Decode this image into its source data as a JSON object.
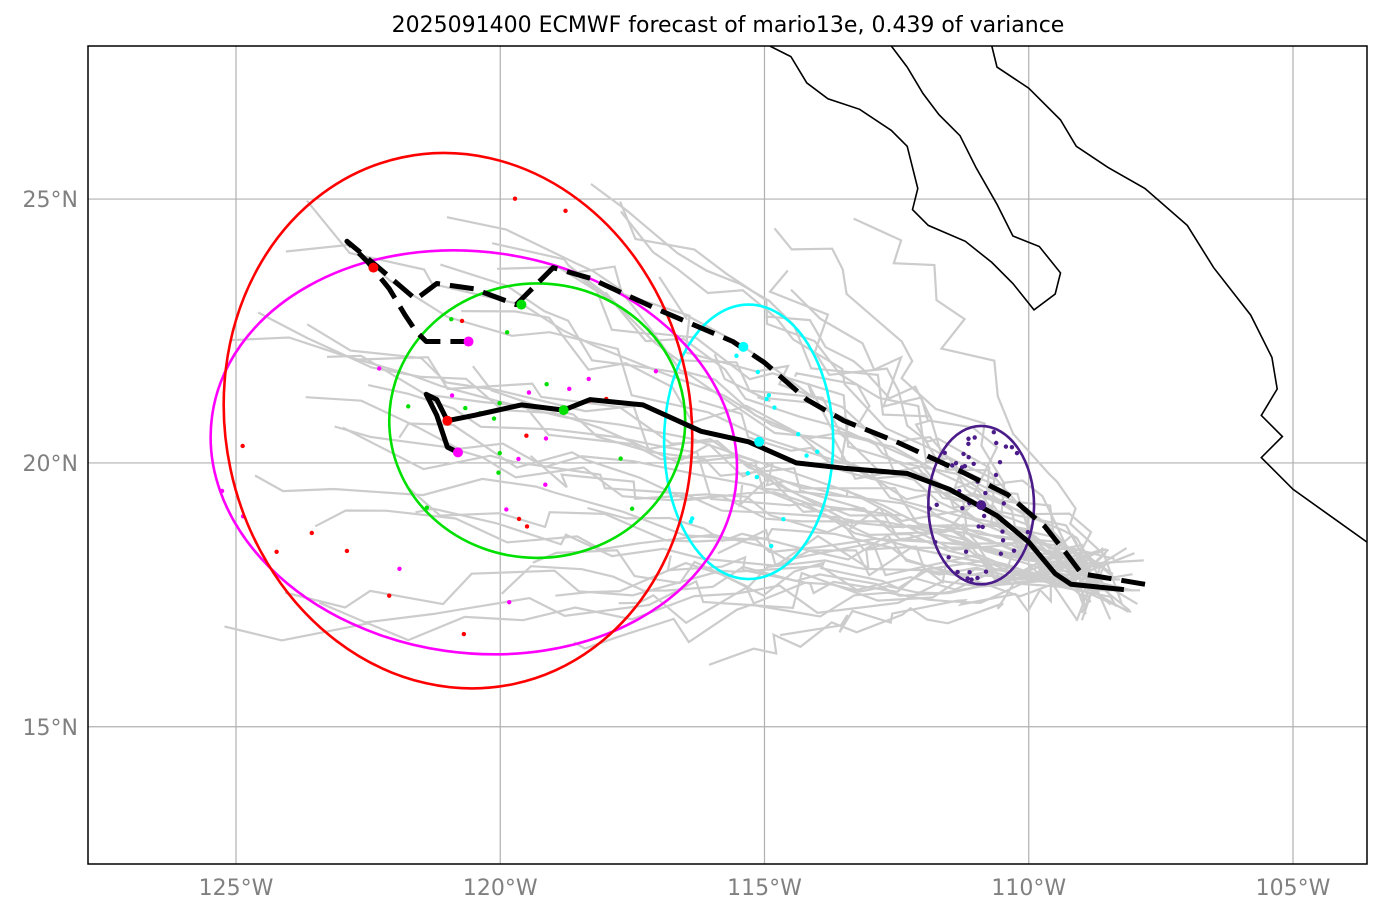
{
  "title": "2025091400 ECMWF forecast of mario13e, 0.439 of variance",
  "map": {
    "lon_range": [
      -127.8,
      -103.6
    ],
    "lat_range": [
      12.4,
      27.9
    ],
    "x_ticks": [
      {
        "lon": -125,
        "label": "125°W"
      },
      {
        "lon": -120,
        "label": "120°W"
      },
      {
        "lon": -115,
        "label": "115°W"
      },
      {
        "lon": -110,
        "label": "110°W"
      },
      {
        "lon": -105,
        "label": "105°W"
      }
    ],
    "y_ticks": [
      {
        "lat": 15,
        "label": "15°N"
      },
      {
        "lat": 20,
        "label": "20°N"
      },
      {
        "lat": 25,
        "label": "25°N"
      }
    ],
    "grid": true
  },
  "chart_data": {
    "type": "map_tracks",
    "colors": {
      "ensemble": "#cccccc",
      "mean_track": "#000000",
      "ellipse_purple": "#4b1b8a",
      "ellipse_cyan": "#00ffff",
      "ellipse_green": "#00e000",
      "ellipse_magenta": "#ff00ff",
      "ellipse_red": "#ff0000",
      "coast": "#000000"
    },
    "mean_track_solid": [
      [
        -108.2,
        17.6
      ],
      [
        -109.2,
        17.7
      ],
      [
        -109.5,
        17.9
      ],
      [
        -110.0,
        18.5
      ],
      [
        -110.6,
        19.0
      ],
      [
        -111.5,
        19.5
      ],
      [
        -112.3,
        19.8
      ],
      [
        -113.5,
        19.9
      ],
      [
        -114.4,
        20.0
      ],
      [
        -115.3,
        20.4
      ],
      [
        -116.2,
        20.6
      ],
      [
        -117.3,
        21.1
      ],
      [
        -118.3,
        21.2
      ],
      [
        -118.8,
        21.0
      ],
      [
        -119.6,
        21.1
      ],
      [
        -120.5,
        20.9
      ],
      [
        -121.0,
        20.8
      ],
      [
        -121.2,
        21.2
      ],
      [
        -121.4,
        21.3
      ],
      [
        -121.2,
        20.9
      ],
      [
        -121.0,
        20.3
      ],
      [
        -120.8,
        20.2
      ]
    ],
    "mean_track_dashed": [
      [
        -107.8,
        17.7
      ],
      [
        -109.0,
        17.9
      ],
      [
        -109.3,
        18.3
      ],
      [
        -109.7,
        18.8
      ],
      [
        -110.4,
        19.4
      ],
      [
        -111.2,
        19.8
      ],
      [
        -112.5,
        20.4
      ],
      [
        -113.5,
        20.8
      ],
      [
        -114.2,
        21.2
      ],
      [
        -115.0,
        21.9
      ],
      [
        -115.6,
        22.3
      ],
      [
        -117.0,
        22.9
      ],
      [
        -118.3,
        23.5
      ],
      [
        -119.0,
        23.7
      ],
      [
        -119.4,
        23.3
      ],
      [
        -119.7,
        23.0
      ],
      [
        -120.5,
        23.3
      ],
      [
        -121.2,
        23.4
      ],
      [
        -121.6,
        23.1
      ],
      [
        -122.3,
        23.7
      ],
      [
        -122.9,
        24.2
      ],
      [
        -122.5,
        23.8
      ],
      [
        -122.1,
        23.3
      ],
      [
        -121.8,
        22.8
      ],
      [
        -121.6,
        22.5
      ],
      [
        -121.4,
        22.3
      ],
      [
        -120.6,
        22.3
      ]
    ],
    "ellipses": [
      {
        "color": "ellipse_purple",
        "center": [
          -110.9,
          19.2
        ],
        "semi_axes_deg": [
          1.0,
          1.5
        ]
      },
      {
        "color": "ellipse_cyan",
        "center": [
          -115.3,
          20.4
        ],
        "semi_axes_deg": [
          1.6,
          2.6
        ]
      },
      {
        "color": "ellipse_green",
        "center": [
          -119.3,
          20.8
        ],
        "semi_axes_deg": [
          2.8,
          2.6
        ]
      },
      {
        "color": "ellipse_magenta",
        "center": [
          -120.5,
          20.2
        ],
        "semi_axes_deg": [
          5.0,
          3.8
        ]
      },
      {
        "color": "ellipse_red",
        "center": [
          -120.8,
          20.8
        ],
        "semi_axes_deg": [
          4.4,
          5.1
        ]
      }
    ],
    "centroids": [
      {
        "color": "ellipse_purple",
        "point": [
          -110.9,
          19.2
        ]
      },
      {
        "color": "ellipse_cyan",
        "point": [
          -115.1,
          20.4
        ]
      },
      {
        "color": "ellipse_cyan",
        "point": [
          -115.4,
          22.2
        ]
      },
      {
        "color": "ellipse_green",
        "point": [
          -118.8,
          21.0
        ]
      },
      {
        "color": "ellipse_green",
        "point": [
          -119.6,
          23.0
        ]
      },
      {
        "color": "ellipse_magenta",
        "point": [
          -120.8,
          20.2
        ]
      },
      {
        "color": "ellipse_magenta",
        "point": [
          -120.6,
          22.3
        ]
      },
      {
        "color": "ellipse_red",
        "point": [
          -121.0,
          20.8
        ]
      },
      {
        "color": "ellipse_red",
        "point": [
          -122.4,
          23.7
        ]
      }
    ]
  }
}
